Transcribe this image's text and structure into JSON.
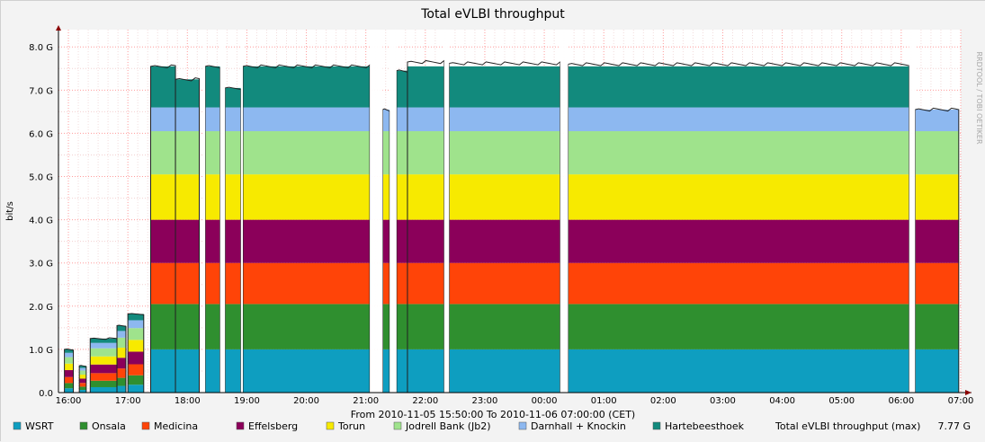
{
  "chart_data": {
    "type": "area",
    "title": "Total eVLBI throughput",
    "xlabel": "From 2010-11-05 15:50:00 To 2010-11-06 07:00:00 (CET)",
    "ylabel": "bit/s",
    "watermark": "RRDTOOL / TOBI OETIKER",
    "ylim": [
      0,
      8.4
    ],
    "yticks": [
      "0.0",
      "1.0 G",
      "2.0 G",
      "3.0 G",
      "4.0 G",
      "5.0 G",
      "6.0 G",
      "7.0 G",
      "8.0 G"
    ],
    "x_ticks": [
      "16:00",
      "17:00",
      "18:00",
      "19:00",
      "20:00",
      "21:00",
      "22:00",
      "23:00",
      "00:00",
      "01:00",
      "02:00",
      "03:00",
      "04:00",
      "05:00",
      "06:00",
      "07:00"
    ],
    "x_start_label": "15:50",
    "x_end_label": "07:00",
    "series": [
      {
        "name": "WSRT",
        "color": "#0e9ec0"
      },
      {
        "name": "Onsala",
        "color": "#2f8f2f"
      },
      {
        "name": "Medicina",
        "color": "#ff4408"
      },
      {
        "name": "Effelsberg",
        "color": "#8b005a"
      },
      {
        "name": "Torun",
        "color": "#f7ea00"
      },
      {
        "name": "Jodrell Bank (Jb2)",
        "color": "#9fe38c"
      },
      {
        "name": "Darnhall + Knockin",
        "color": "#8db8f0"
      },
      {
        "name": "Hartebeesthoek",
        "color": "#128a7d"
      }
    ],
    "summary": {
      "label": "Total eVLBI throughput (max)",
      "value": "7.77 G"
    },
    "stack_levels_g": [
      1.0,
      2.05,
      3.0,
      4.0,
      5.05,
      6.05,
      6.6,
      7.55
    ],
    "segments": [
      {
        "start": "15:56",
        "end": "16:05",
        "total": 1.0
      },
      {
        "start": "16:11",
        "end": "16:18",
        "total": 0.62
      },
      {
        "start": "16:22",
        "end": "16:49",
        "total": 1.25
      },
      {
        "start": "16:49",
        "end": "16:58",
        "total": 1.55
      },
      {
        "start": "17:00",
        "end": "17:16",
        "total": 1.82
      },
      {
        "start": "17:23",
        "end": "17:48",
        "total": 7.55
      },
      {
        "start": "17:48",
        "end": "18:12",
        "total": 7.25
      },
      {
        "start": "18:18",
        "end": "18:33",
        "total": 7.55
      },
      {
        "start": "18:38",
        "end": "18:54",
        "total": 7.05
      },
      {
        "start": "18:56",
        "end": "21:04",
        "total": 7.55
      },
      {
        "start": "21:17",
        "end": "21:24",
        "total": 6.55
      },
      {
        "start": "21:31",
        "end": "21:42",
        "total": 7.45
      },
      {
        "start": "21:42",
        "end": "22:19",
        "total": 7.65
      },
      {
        "start": "22:24",
        "end": "00:16",
        "total": 7.62
      },
      {
        "start": "00:24",
        "end": "06:08",
        "total": 7.6
      },
      {
        "start": "06:14",
        "end": "06:58",
        "total": 6.55
      }
    ]
  }
}
